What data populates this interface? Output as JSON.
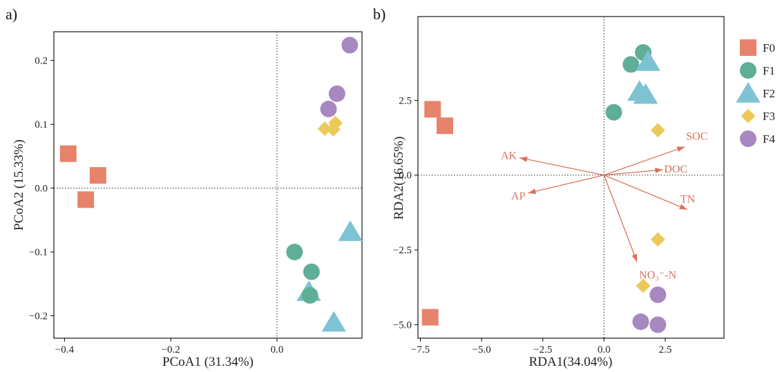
{
  "colors": {
    "F0": "#E8836B",
    "F1": "#5FAE97",
    "F2": "#7EC3D3",
    "F3": "#EDC95A",
    "F4": "#A888C0",
    "arrow": "#D9735A"
  },
  "legend": [
    {
      "label": "F0",
      "shape": "square"
    },
    {
      "label": "F1",
      "shape": "circle"
    },
    {
      "label": "F2",
      "shape": "triangle"
    },
    {
      "label": "F3",
      "shape": "diamond"
    },
    {
      "label": "F4",
      "shape": "circle"
    }
  ],
  "chart_data": [
    {
      "type": "scatter",
      "panel_label": "a)",
      "xlabel": "PCoA1 (31.34%)",
      "ylabel": "PCoA2 (15.33%)",
      "xlim": [
        -0.42,
        0.16
      ],
      "ylim": [
        -0.235,
        0.245
      ],
      "xticks": [
        {
          "v": -0.4,
          "t": "−0.4"
        },
        {
          "v": -0.2,
          "t": "−0.2"
        },
        {
          "v": 0.0,
          "t": "0.0"
        }
      ],
      "yticks": [
        {
          "v": 0.2,
          "t": "0.2"
        },
        {
          "v": 0.1,
          "t": "0.1"
        },
        {
          "v": 0.0,
          "t": "0.0"
        },
        {
          "v": -0.1,
          "t": "−0.1"
        },
        {
          "v": -0.2,
          "t": "−0.2"
        }
      ],
      "reference_lines": {
        "x": 0,
        "y": 0
      },
      "series": [
        {
          "group": "F0",
          "shape": "square",
          "points": [
            [
              -0.393,
              0.054
            ],
            [
              -0.337,
              0.02
            ],
            [
              -0.36,
              -0.018
            ]
          ]
        },
        {
          "group": "F4",
          "shape": "circle",
          "points": [
            [
              0.137,
              0.224
            ],
            [
              0.113,
              0.148
            ],
            [
              0.097,
              0.124
            ]
          ]
        },
        {
          "group": "F3",
          "shape": "diamond",
          "points": [
            [
              0.11,
              0.102
            ],
            [
              0.09,
              0.093
            ],
            [
              0.106,
              0.092
            ]
          ]
        },
        {
          "group": "F2",
          "shape": "triangle",
          "points": [
            [
              0.138,
              -0.068
            ],
            [
              0.06,
              -0.162
            ],
            [
              0.107,
              -0.21
            ]
          ]
        },
        {
          "group": "F1",
          "shape": "circle",
          "points": [
            [
              0.033,
              -0.1
            ],
            [
              0.065,
              -0.131
            ],
            [
              0.062,
              -0.168
            ]
          ]
        }
      ]
    },
    {
      "type": "scatter",
      "panel_label": "b)",
      "xlabel": "RDA1(34.04%)",
      "ylabel": "RDA2(16.65%)",
      "xlim": [
        -7.6,
        4.9
      ],
      "ylim": [
        -5.45,
        5.3
      ],
      "xticks": [
        {
          "v": -7.5,
          "t": "−7.5"
        },
        {
          "v": -5.0,
          "t": "−5.0"
        },
        {
          "v": -2.5,
          "t": "−2.5"
        },
        {
          "v": 0.0,
          "t": "0.0"
        },
        {
          "v": 2.5,
          "t": "2.5"
        }
      ],
      "yticks": [
        {
          "v": 2.5,
          "t": "2.5"
        },
        {
          "v": 0.0,
          "t": "0.0"
        },
        {
          "v": -2.5,
          "t": "−2.5"
        },
        {
          "v": -5.0,
          "t": "−5.0"
        }
      ],
      "reference_lines": {
        "x": 0,
        "y": 0
      },
      "series": [
        {
          "group": "F0",
          "shape": "square",
          "points": [
            [
              -7.0,
              2.2
            ],
            [
              -6.5,
              1.65
            ],
            [
              -7.1,
              -4.75
            ]
          ]
        },
        {
          "group": "F1",
          "shape": "circle",
          "points": [
            [
              1.1,
              3.7
            ],
            [
              1.6,
              4.1
            ],
            [
              0.4,
              2.1
            ]
          ]
        },
        {
          "group": "F2",
          "shape": "triangle",
          "points": [
            [
              1.8,
              3.8
            ],
            [
              1.45,
              2.8
            ],
            [
              1.7,
              2.7
            ]
          ]
        },
        {
          "group": "F3",
          "shape": "diamond",
          "points": [
            [
              2.2,
              1.5
            ],
            [
              2.2,
              -2.15
            ],
            [
              1.6,
              -3.7
            ]
          ]
        },
        {
          "group": "F4",
          "shape": "circle",
          "points": [
            [
              2.2,
              -4.0
            ],
            [
              1.5,
              -4.9
            ],
            [
              2.2,
              -5.0
            ]
          ]
        }
      ],
      "vectors": [
        {
          "label": "SOC",
          "x": 3.3,
          "y": 0.95
        },
        {
          "label": "DOC",
          "x": 2.4,
          "y": 0.18
        },
        {
          "label": "TN",
          "x": 3.4,
          "y": -1.15
        },
        {
          "label": "AK",
          "x": -3.45,
          "y": 0.58
        },
        {
          "label": "AP",
          "x": -3.1,
          "y": -0.6
        },
        {
          "label": "NO₃⁻-N",
          "x": 1.35,
          "y": -2.9
        }
      ]
    }
  ]
}
